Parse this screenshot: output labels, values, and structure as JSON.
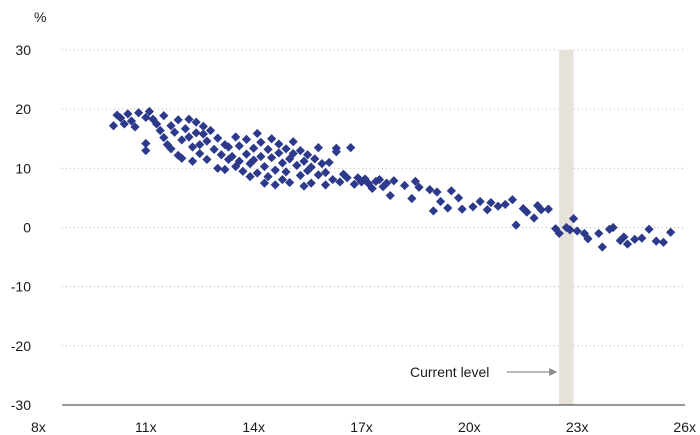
{
  "chart_data": {
    "type": "scatter",
    "title": "",
    "xlabel": "",
    "ylabel": "%",
    "xlim": [
      8,
      26
    ],
    "ylim": [
      -30,
      30
    ],
    "x_ticks": [
      8,
      11,
      14,
      17,
      20,
      23,
      26
    ],
    "x_tick_labels": [
      "8x",
      "11x",
      "14x",
      "17x",
      "20x",
      "23x",
      "26x"
    ],
    "y_ticks": [
      -30,
      -20,
      -10,
      0,
      10,
      20,
      30
    ],
    "y_tick_labels": [
      "-30",
      "-20",
      "-10",
      "0",
      "10",
      "20",
      "30"
    ],
    "grid": "horizontal-dotted",
    "marker_color": "#2d3a8c",
    "band_color": "#e6e1d9",
    "annotation": {
      "text": "Current level",
      "band_x": [
        22.5,
        22.9
      ]
    },
    "points": [
      [
        10.1,
        17.2
      ],
      [
        10.2,
        19.0
      ],
      [
        10.3,
        18.5
      ],
      [
        10.4,
        17.5
      ],
      [
        10.5,
        19.2
      ],
      [
        10.6,
        18.0
      ],
      [
        10.7,
        17.0
      ],
      [
        10.8,
        19.4
      ],
      [
        11.0,
        18.6
      ],
      [
        11.0,
        14.2
      ],
      [
        11.0,
        13.0
      ],
      [
        11.1,
        19.6
      ],
      [
        11.2,
        18.3
      ],
      [
        11.3,
        17.5
      ],
      [
        11.4,
        16.4
      ],
      [
        11.5,
        18.9
      ],
      [
        11.5,
        15.2
      ],
      [
        11.6,
        14.0
      ],
      [
        11.7,
        17.2
      ],
      [
        11.7,
        13.3
      ],
      [
        11.8,
        16.1
      ],
      [
        11.9,
        12.2
      ],
      [
        11.9,
        18.2
      ],
      [
        12.0,
        14.8
      ],
      [
        12.0,
        11.7
      ],
      [
        12.1,
        16.7
      ],
      [
        12.2,
        15.3
      ],
      [
        12.2,
        18.3
      ],
      [
        12.3,
        13.6
      ],
      [
        12.3,
        11.2
      ],
      [
        12.4,
        16.0
      ],
      [
        12.4,
        17.8
      ],
      [
        12.5,
        14.0
      ],
      [
        12.5,
        12.5
      ],
      [
        12.6,
        15.8
      ],
      [
        12.6,
        17.1
      ],
      [
        12.7,
        11.5
      ],
      [
        12.7,
        14.6
      ],
      [
        12.8,
        16.4
      ],
      [
        12.9,
        13.2
      ],
      [
        13.0,
        15.1
      ],
      [
        13.0,
        10.0
      ],
      [
        13.1,
        12.3
      ],
      [
        13.2,
        14.0
      ],
      [
        13.2,
        9.8
      ],
      [
        13.3,
        11.5
      ],
      [
        13.3,
        13.6
      ],
      [
        13.4,
        12.0
      ],
      [
        13.5,
        10.3
      ],
      [
        13.5,
        15.3
      ],
      [
        13.6,
        11.2
      ],
      [
        13.6,
        13.8
      ],
      [
        13.7,
        9.5
      ],
      [
        13.8,
        12.4
      ],
      [
        13.8,
        14.9
      ],
      [
        13.9,
        10.8
      ],
      [
        13.9,
        8.6
      ],
      [
        14.0,
        11.4
      ],
      [
        14.0,
        13.4
      ],
      [
        14.1,
        9.2
      ],
      [
        14.1,
        15.9
      ],
      [
        14.2,
        12.0
      ],
      [
        14.2,
        14.4
      ],
      [
        14.3,
        7.5
      ],
      [
        14.3,
        10.3
      ],
      [
        14.4,
        13.2
      ],
      [
        14.4,
        8.6
      ],
      [
        14.5,
        11.8
      ],
      [
        14.5,
        15.0
      ],
      [
        14.6,
        9.7
      ],
      [
        14.6,
        7.2
      ],
      [
        14.7,
        12.6
      ],
      [
        14.7,
        14.1
      ],
      [
        14.8,
        10.9
      ],
      [
        14.8,
        8.1
      ],
      [
        14.9,
        13.3
      ],
      [
        14.9,
        9.4
      ],
      [
        15.0,
        11.6
      ],
      [
        15.0,
        7.6
      ],
      [
        15.1,
        12.5
      ],
      [
        15.1,
        14.5
      ],
      [
        15.2,
        10.5
      ],
      [
        15.3,
        8.8
      ],
      [
        15.3,
        13.0
      ],
      [
        15.4,
        7.0
      ],
      [
        15.4,
        11.2
      ],
      [
        15.5,
        9.6
      ],
      [
        15.5,
        12.3
      ],
      [
        15.6,
        10.2
      ],
      [
        15.6,
        7.5
      ],
      [
        15.7,
        11.6
      ],
      [
        15.8,
        13.5
      ],
      [
        15.8,
        8.9
      ],
      [
        15.9,
        10.8
      ],
      [
        16.0,
        7.2
      ],
      [
        16.0,
        9.3
      ],
      [
        16.1,
        11.0
      ],
      [
        16.2,
        8.1
      ],
      [
        16.3,
        13.4
      ],
      [
        16.3,
        12.8
      ],
      [
        16.4,
        7.7
      ],
      [
        16.5,
        9.0
      ],
      [
        16.6,
        8.4
      ],
      [
        16.7,
        13.5
      ],
      [
        16.8,
        7.3
      ],
      [
        16.9,
        8.4
      ],
      [
        17.0,
        7.7
      ],
      [
        17.1,
        8.2
      ],
      [
        17.2,
        7.4
      ],
      [
        17.3,
        6.6
      ],
      [
        17.4,
        7.8
      ],
      [
        17.5,
        8.1
      ],
      [
        17.6,
        6.9
      ],
      [
        17.7,
        7.5
      ],
      [
        17.8,
        5.4
      ],
      [
        17.9,
        7.9
      ],
      [
        18.2,
        7.1
      ],
      [
        18.4,
        4.9
      ],
      [
        18.5,
        7.8
      ],
      [
        18.6,
        6.8
      ],
      [
        18.9,
        6.4
      ],
      [
        19.0,
        2.8
      ],
      [
        19.1,
        6.0
      ],
      [
        19.2,
        4.4
      ],
      [
        19.4,
        3.3
      ],
      [
        19.5,
        6.2
      ],
      [
        19.7,
        5.0
      ],
      [
        19.8,
        3.1
      ],
      [
        20.1,
        3.5
      ],
      [
        20.3,
        4.4
      ],
      [
        20.5,
        3.0
      ],
      [
        20.6,
        4.2
      ],
      [
        20.8,
        3.6
      ],
      [
        21.0,
        3.9
      ],
      [
        21.2,
        4.7
      ],
      [
        21.3,
        0.4
      ],
      [
        21.5,
        3.2
      ],
      [
        21.6,
        2.6
      ],
      [
        21.8,
        1.6
      ],
      [
        21.9,
        3.7
      ],
      [
        22.0,
        3.0
      ],
      [
        22.2,
        3.1
      ],
      [
        22.4,
        -0.2
      ],
      [
        22.5,
        -1.0
      ],
      [
        22.7,
        0.0
      ],
      [
        22.8,
        -0.4
      ],
      [
        22.9,
        1.5
      ],
      [
        23.0,
        -0.6
      ],
      [
        23.2,
        -1.0
      ],
      [
        23.3,
        -1.9
      ],
      [
        23.6,
        -1.0
      ],
      [
        23.7,
        -3.3
      ],
      [
        23.9,
        -0.3
      ],
      [
        24.0,
        0.0
      ],
      [
        24.2,
        -2.2
      ],
      [
        24.3,
        -1.6
      ],
      [
        24.4,
        -2.8
      ],
      [
        24.6,
        -2.0
      ],
      [
        24.8,
        -1.8
      ],
      [
        25.0,
        -0.3
      ],
      [
        25.2,
        -2.3
      ],
      [
        25.4,
        -2.5
      ],
      [
        25.6,
        -0.8
      ]
    ]
  }
}
